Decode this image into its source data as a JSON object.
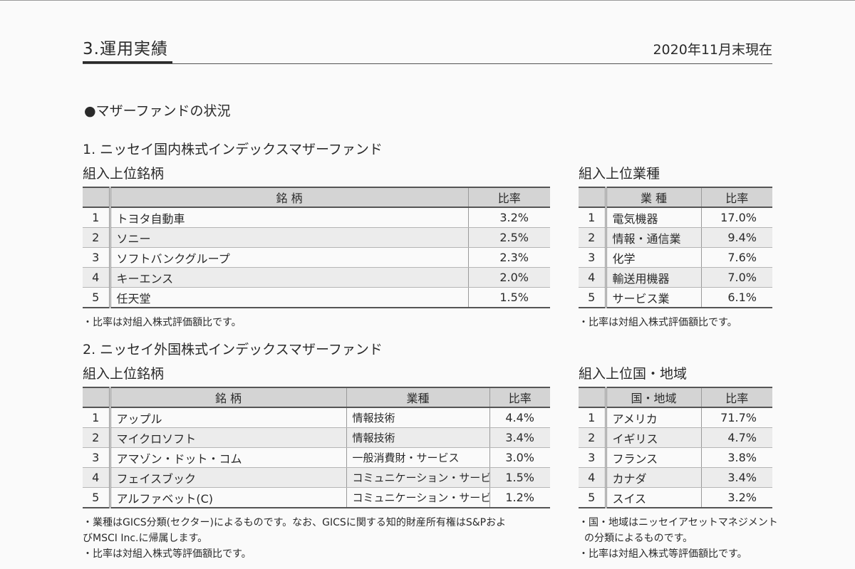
{
  "header": {
    "section_title": "3.運用実績",
    "report_date": "2020年11月末現在"
  },
  "mother_fund_heading": "●マザーファンドの状況",
  "domestic": {
    "heading": "1. ニッセイ国内株式インデックスマザーファンド",
    "holdings": {
      "title": "組入上位銘柄",
      "columns": [
        "",
        "銘 柄",
        "比率"
      ],
      "rows": [
        {
          "rank": "1",
          "name": "トヨタ自動車",
          "ratio": "3.2%"
        },
        {
          "rank": "2",
          "name": "ソニー",
          "ratio": "2.5%"
        },
        {
          "rank": "3",
          "name": "ソフトバンクグループ",
          "ratio": "2.3%"
        },
        {
          "rank": "4",
          "name": "キーエンス",
          "ratio": "2.0%"
        },
        {
          "rank": "5",
          "name": "任天堂",
          "ratio": "1.5%"
        }
      ],
      "note": "・比率は対組入株式評価額比です。"
    },
    "industries": {
      "title": "組入上位業種",
      "columns": [
        "",
        "業 種",
        "比率"
      ],
      "rows": [
        {
          "rank": "1",
          "name": "電気機器",
          "ratio": "17.0%"
        },
        {
          "rank": "2",
          "name": "情報・通信業",
          "ratio": "9.4%"
        },
        {
          "rank": "3",
          "name": "化学",
          "ratio": "7.6%"
        },
        {
          "rank": "4",
          "name": "輸送用機器",
          "ratio": "7.0%"
        },
        {
          "rank": "5",
          "name": "サービス業",
          "ratio": "6.1%"
        }
      ],
      "note": "・比率は対組入株式評価額比です。"
    }
  },
  "foreign": {
    "heading": "2. ニッセイ外国株式インデックスマザーファンド",
    "holdings": {
      "title": "組入上位銘柄",
      "columns": [
        "",
        "銘 柄",
        "業種",
        "比率"
      ],
      "rows": [
        {
          "rank": "1",
          "name": "アップル",
          "sector": "情報技術",
          "ratio": "4.4%"
        },
        {
          "rank": "2",
          "name": "マイクロソフト",
          "sector": "情報技術",
          "ratio": "3.4%"
        },
        {
          "rank": "3",
          "name": "アマゾン・ドット・コム",
          "sector": "一般消費財・サービス",
          "ratio": "3.0%"
        },
        {
          "rank": "4",
          "name": "フェイスブック",
          "sector": "コミュニケーション・サービス",
          "ratio": "1.5%"
        },
        {
          "rank": "5",
          "name": "アルファベット(C)",
          "sector": "コミュニケーション・サービス",
          "ratio": "1.2%"
        }
      ],
      "note_lines": [
        "・業種はGICS分類(セクター)によるものです。なお、GICSに関する知的財産所有権はS&Pおよ",
        "びMSCI Inc.に帰属します。",
        "・比率は対組入株式等評価額比です。"
      ]
    },
    "countries": {
      "title": "組入上位国・地域",
      "columns": [
        "",
        "国・地域",
        "比率"
      ],
      "rows": [
        {
          "rank": "1",
          "name": "アメリカ",
          "ratio": "71.7%"
        },
        {
          "rank": "2",
          "name": "イギリス",
          "ratio": "4.7%"
        },
        {
          "rank": "3",
          "name": "フランス",
          "ratio": "3.8%"
        },
        {
          "rank": "4",
          "name": "カナダ",
          "ratio": "3.4%"
        },
        {
          "rank": "5",
          "name": "スイス",
          "ratio": "3.2%"
        }
      ],
      "note_lines": [
        "・国・地域はニッセイアセットマネジメント",
        "の分類によるものです。",
        "・比率は対組入株式等評価額比です。"
      ]
    }
  }
}
